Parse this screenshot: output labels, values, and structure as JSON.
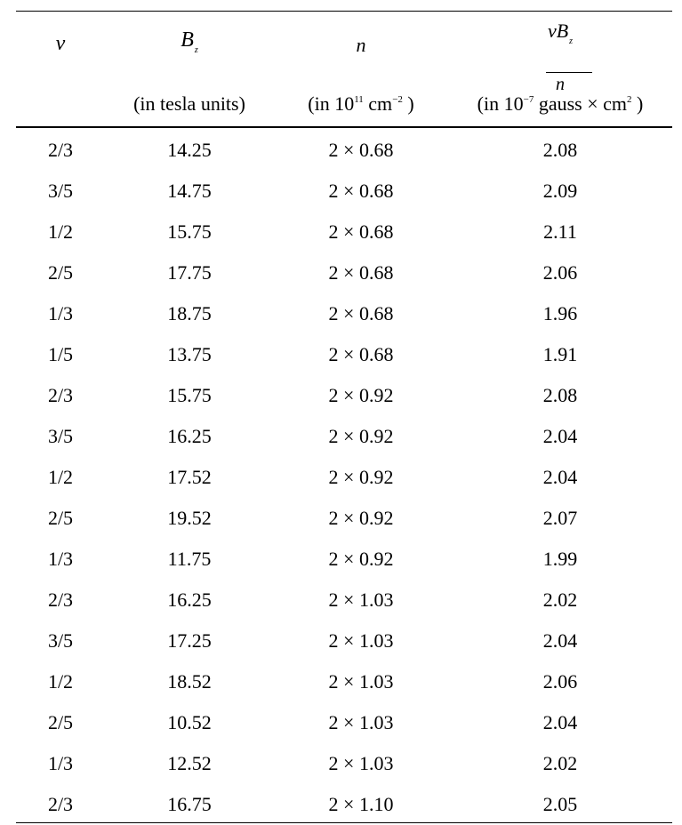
{
  "table": {
    "headers": {
      "nu": {
        "symbol": "ν"
      },
      "bz": {
        "symbol": "B",
        "subscript": "z",
        "unit_pre": "(in tesla units)"
      },
      "n": {
        "symbol": "n",
        "unit_pre": "(in ",
        "unit_base": "10",
        "unit_exp": "11",
        "unit_mid": " cm",
        "unit_exp2": "−2",
        "unit_post": " )"
      },
      "ratio": {
        "numerator": "νB",
        "numerator_sub": "z",
        "denominator": "n",
        "unit_pre": "(in ",
        "unit_base": "10",
        "unit_exp": "−7",
        "unit_mid": " gauss × cm",
        "unit_exp2": "2",
        "unit_post": " )"
      }
    },
    "rows": [
      {
        "nu": "2/3",
        "bz": "14.25",
        "n": "2 × 0.68",
        "ratio": "2.08"
      },
      {
        "nu": "3/5",
        "bz": "14.75",
        "n": "2 × 0.68",
        "ratio": "2.09"
      },
      {
        "nu": "1/2",
        "bz": "15.75",
        "n": "2 × 0.68",
        "ratio": "2.11"
      },
      {
        "nu": "2/5",
        "bz": "17.75",
        "n": "2 × 0.68",
        "ratio": "2.06"
      },
      {
        "nu": "1/3",
        "bz": "18.75",
        "n": "2 × 0.68",
        "ratio": "1.96"
      },
      {
        "nu": "1/5",
        "bz": "13.75",
        "n": "2 × 0.68",
        "ratio": "1.91"
      },
      {
        "nu": "2/3",
        "bz": "15.75",
        "n": "2 × 0.92",
        "ratio": "2.08"
      },
      {
        "nu": "3/5",
        "bz": "16.25",
        "n": "2 × 0.92",
        "ratio": "2.04"
      },
      {
        "nu": "1/2",
        "bz": "17.52",
        "n": "2 × 0.92",
        "ratio": "2.04"
      },
      {
        "nu": "2/5",
        "bz": "19.52",
        "n": "2 × 0.92",
        "ratio": "2.07"
      },
      {
        "nu": "1/3",
        "bz": "11.75",
        "n": "2 × 0.92",
        "ratio": "1.99"
      },
      {
        "nu": "2/3",
        "bz": "16.25",
        "n": "2 × 1.03",
        "ratio": "2.02"
      },
      {
        "nu": "3/5",
        "bz": "17.25",
        "n": "2 × 1.03",
        "ratio": "2.04"
      },
      {
        "nu": "1/2",
        "bz": "18.52",
        "n": "2 × 1.03",
        "ratio": "2.06"
      },
      {
        "nu": "2/5",
        "bz": "10.52",
        "n": "2 × 1.03",
        "ratio": "2.04"
      },
      {
        "nu": "1/3",
        "bz": "12.52",
        "n": "2 × 1.03",
        "ratio": "2.02"
      },
      {
        "nu": "2/3",
        "bz": "16.75",
        "n": "2 × 1.10",
        "ratio": "2.05"
      }
    ]
  }
}
